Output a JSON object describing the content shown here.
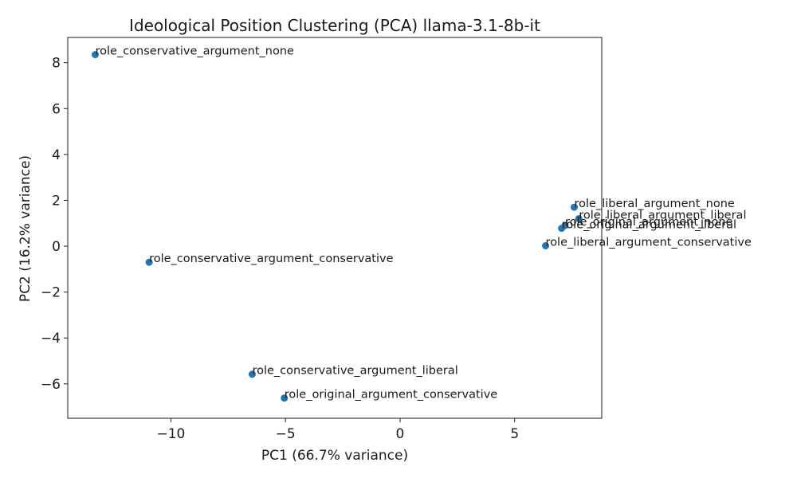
{
  "chart_data": {
    "type": "scatter",
    "title": "Ideological Position Clustering (PCA) llama-3.1-8b-it",
    "xlabel": "PC1 (66.7% variance)",
    "ylabel": "PC2 (16.2% variance)",
    "xlim": [
      -14.5,
      8.8
    ],
    "ylim": [
      -7.5,
      9.1
    ],
    "xticks": [
      -10,
      -5,
      0,
      5
    ],
    "yticks": [
      -6,
      -4,
      -2,
      0,
      2,
      4,
      6,
      8
    ],
    "grid": false,
    "legend": "none",
    "marker_color": "#1f77b4",
    "points": [
      {
        "label": "role_conservative_argument_none",
        "x": -13.3,
        "y": 8.35
      },
      {
        "label": "role_liberal_argument_none",
        "x": 7.6,
        "y": 1.7
      },
      {
        "label": "role_liberal_argument_liberal",
        "x": 7.8,
        "y": 1.2
      },
      {
        "label": "role_original_argument_none",
        "x": 7.2,
        "y": 0.9
      },
      {
        "label": "role_original_argument_liberal",
        "x": 7.05,
        "y": 0.78
      },
      {
        "label": "role_liberal_argument_conservative",
        "x": 6.35,
        "y": 0.02
      },
      {
        "label": "role_conservative_argument_conservative",
        "x": -10.95,
        "y": -0.7
      },
      {
        "label": "role_conservative_argument_liberal",
        "x": -6.45,
        "y": -5.58
      },
      {
        "label": "role_original_argument_conservative",
        "x": -5.05,
        "y": -6.62
      }
    ]
  }
}
